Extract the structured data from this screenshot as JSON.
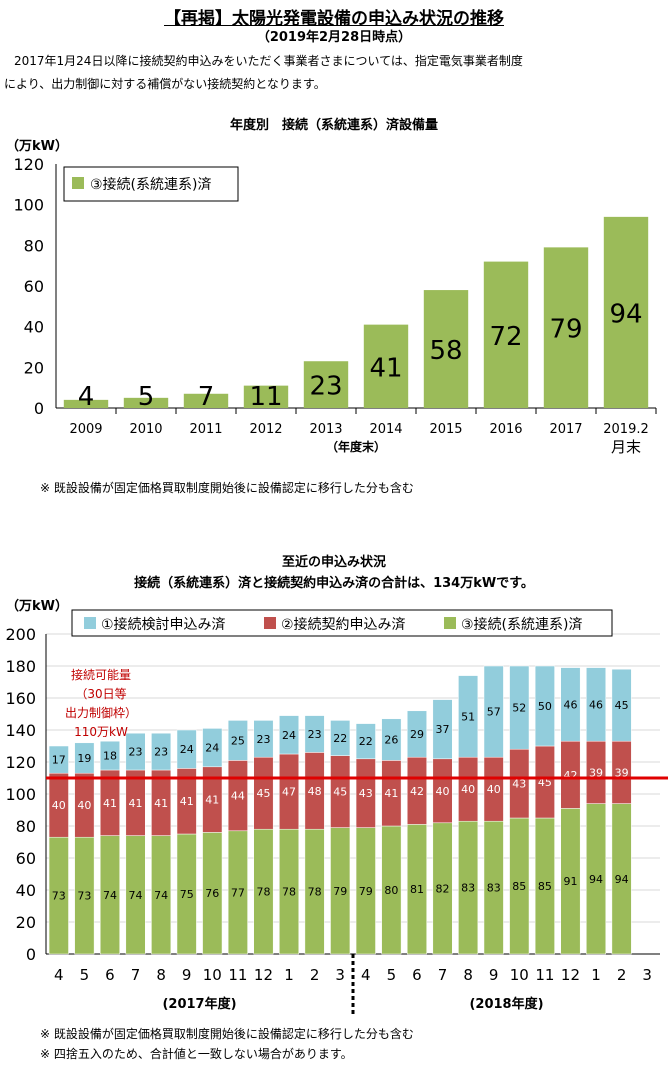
{
  "header": {
    "title": "【再掲】太陽光発電設備の申込み状況の推移",
    "subtitle": "（2019年2月28日時点）",
    "intro_line1": "2017年1月24日以降に接続契約申込みをいただく事業者さまについては、指定電気事業者制度",
    "intro_line2": "により、出力制御に対する補償がない接続契約となります。"
  },
  "chart1": {
    "title": "年度別　接続（系統連系）済設備量",
    "ylabel": "（万kW）",
    "xlabel": "（年度末）",
    "legend": "③接続(系統連系)済",
    "note": "※ 既設設備が固定価格買取制度開始後に設備認定に移行した分も含む"
  },
  "chart2": {
    "title_line1": "至近の申込み状況",
    "title_line2": "接続（系統連系）済と接続契約申込み済の合計は、134万kWです。",
    "ylabel": "（万kW）",
    "legend": [
      "①接続検討申込み済",
      "②接続契約申込み済",
      "③接続(系統連系)済"
    ],
    "capacity_label": [
      "接続可能量",
      "（30日等",
      "出力制御枠）",
      "110万kW"
    ],
    "fy_labels": [
      "(2017年度)",
      "(2018年度)"
    ],
    "note1": "※ 既設設備が固定価格買取制度開始後に設備認定に移行した分も含む",
    "note2": "※ 四捨五入のため、合計値と一致しない場合があります。"
  },
  "colors": {
    "connected": "#9bbb59",
    "contract": "#c0504d",
    "study": "#92cddc",
    "capacity_line": "#e00000",
    "capacity_text": "#c00000",
    "grid": "#d9d9d9"
  },
  "chart_data": [
    {
      "type": "bar",
      "categories": [
        "2009",
        "2010",
        "2011",
        "2012",
        "2013",
        "2014",
        "2015",
        "2016",
        "2017",
        "2019.2\n月末"
      ],
      "series": [
        {
          "name": "③接続(系統連系)済",
          "values": [
            4,
            5,
            7,
            11,
            23,
            41,
            58,
            72,
            79,
            94
          ]
        }
      ],
      "ylabel": "（万kW）",
      "xlabel": "（年度末）",
      "ylim": [
        0,
        120
      ],
      "yticks": [
        0,
        20,
        40,
        60,
        80,
        100,
        120
      ],
      "legend": "top-left",
      "grid": false
    },
    {
      "type": "bar",
      "stacked": true,
      "categories": [
        "4",
        "5",
        "6",
        "7",
        "8",
        "9",
        "10",
        "11",
        "12",
        "1",
        "2",
        "3",
        "4",
        "5",
        "6",
        "7",
        "8",
        "9",
        "10",
        "11",
        "12",
        "1",
        "2",
        "3"
      ],
      "series": [
        {
          "name": "③接続(系統連系)済",
          "values": [
            73,
            73,
            74,
            74,
            74,
            75,
            76,
            77,
            78,
            78,
            78,
            79,
            79,
            80,
            81,
            82,
            83,
            83,
            85,
            85,
            91,
            94,
            94,
            null
          ]
        },
        {
          "name": "②接続契約申込み済",
          "values": [
            40,
            40,
            41,
            41,
            41,
            41,
            41,
            44,
            45,
            47,
            48,
            45,
            43,
            41,
            42,
            40,
            40,
            40,
            43,
            45,
            42,
            39,
            39,
            null
          ]
        },
        {
          "name": "①接続検討申込み済",
          "values": [
            17,
            19,
            18,
            23,
            23,
            24,
            24,
            25,
            23,
            24,
            23,
            22,
            22,
            26,
            29,
            37,
            51,
            57,
            52,
            50,
            46,
            46,
            45,
            null
          ]
        }
      ],
      "ylabel": "（万kW）",
      "ylim": [
        0,
        200
      ],
      "yticks": [
        0,
        20,
        40,
        60,
        80,
        100,
        120,
        140,
        160,
        180,
        200
      ],
      "reference_line": {
        "value": 110,
        "label": "接続可能量（30日等出力制御枠）110万kW"
      },
      "groups": [
        {
          "label": "(2017年度)",
          "from": 0,
          "to": 11
        },
        {
          "label": "(2018年度)",
          "from": 12,
          "to": 23
        }
      ],
      "legend": "top",
      "grid": true
    }
  ]
}
